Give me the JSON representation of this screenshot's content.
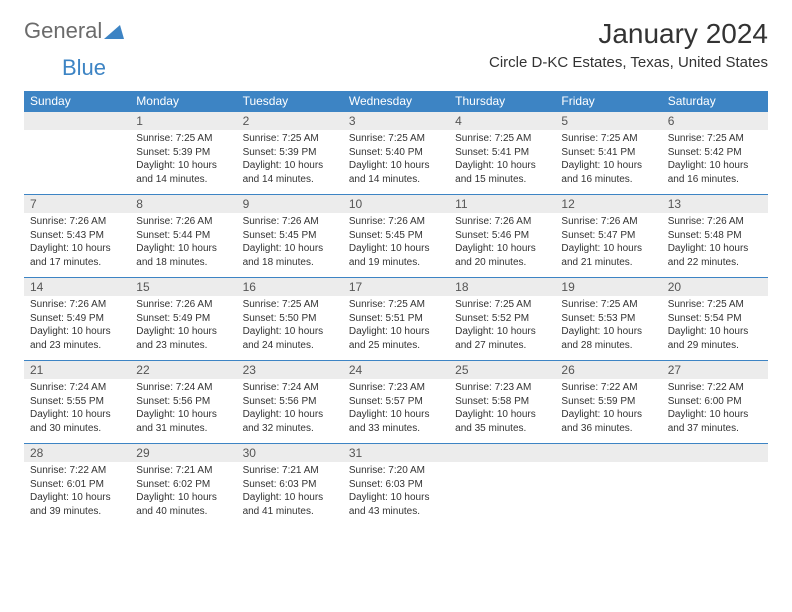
{
  "logo": {
    "general": "General",
    "blue": "Blue"
  },
  "title": "January 2024",
  "location": "Circle D-KC Estates, Texas, United States",
  "colors": {
    "header_bg": "#3d84c4",
    "header_text": "#ffffff",
    "daynum_bg": "#ececec",
    "border": "#3d84c4",
    "body_text": "#333333",
    "logo_gray": "#6b6b6b",
    "logo_blue": "#3d84c4"
  },
  "fonts": {
    "title_size": 28,
    "location_size": 15,
    "dow_size": 12,
    "daynum_size": 12,
    "body_size": 10
  },
  "days_of_week": [
    "Sunday",
    "Monday",
    "Tuesday",
    "Wednesday",
    "Thursday",
    "Friday",
    "Saturday"
  ],
  "weeks": [
    {
      "nums": [
        "",
        "1",
        "2",
        "3",
        "4",
        "5",
        "6"
      ],
      "cells": [
        {
          "sunrise": "",
          "sunset": "",
          "daylight1": "",
          "daylight2": ""
        },
        {
          "sunrise": "Sunrise: 7:25 AM",
          "sunset": "Sunset: 5:39 PM",
          "daylight1": "Daylight: 10 hours",
          "daylight2": "and 14 minutes."
        },
        {
          "sunrise": "Sunrise: 7:25 AM",
          "sunset": "Sunset: 5:39 PM",
          "daylight1": "Daylight: 10 hours",
          "daylight2": "and 14 minutes."
        },
        {
          "sunrise": "Sunrise: 7:25 AM",
          "sunset": "Sunset: 5:40 PM",
          "daylight1": "Daylight: 10 hours",
          "daylight2": "and 14 minutes."
        },
        {
          "sunrise": "Sunrise: 7:25 AM",
          "sunset": "Sunset: 5:41 PM",
          "daylight1": "Daylight: 10 hours",
          "daylight2": "and 15 minutes."
        },
        {
          "sunrise": "Sunrise: 7:25 AM",
          "sunset": "Sunset: 5:41 PM",
          "daylight1": "Daylight: 10 hours",
          "daylight2": "and 16 minutes."
        },
        {
          "sunrise": "Sunrise: 7:25 AM",
          "sunset": "Sunset: 5:42 PM",
          "daylight1": "Daylight: 10 hours",
          "daylight2": "and 16 minutes."
        }
      ]
    },
    {
      "nums": [
        "7",
        "8",
        "9",
        "10",
        "11",
        "12",
        "13"
      ],
      "cells": [
        {
          "sunrise": "Sunrise: 7:26 AM",
          "sunset": "Sunset: 5:43 PM",
          "daylight1": "Daylight: 10 hours",
          "daylight2": "and 17 minutes."
        },
        {
          "sunrise": "Sunrise: 7:26 AM",
          "sunset": "Sunset: 5:44 PM",
          "daylight1": "Daylight: 10 hours",
          "daylight2": "and 18 minutes."
        },
        {
          "sunrise": "Sunrise: 7:26 AM",
          "sunset": "Sunset: 5:45 PM",
          "daylight1": "Daylight: 10 hours",
          "daylight2": "and 18 minutes."
        },
        {
          "sunrise": "Sunrise: 7:26 AM",
          "sunset": "Sunset: 5:45 PM",
          "daylight1": "Daylight: 10 hours",
          "daylight2": "and 19 minutes."
        },
        {
          "sunrise": "Sunrise: 7:26 AM",
          "sunset": "Sunset: 5:46 PM",
          "daylight1": "Daylight: 10 hours",
          "daylight2": "and 20 minutes."
        },
        {
          "sunrise": "Sunrise: 7:26 AM",
          "sunset": "Sunset: 5:47 PM",
          "daylight1": "Daylight: 10 hours",
          "daylight2": "and 21 minutes."
        },
        {
          "sunrise": "Sunrise: 7:26 AM",
          "sunset": "Sunset: 5:48 PM",
          "daylight1": "Daylight: 10 hours",
          "daylight2": "and 22 minutes."
        }
      ]
    },
    {
      "nums": [
        "14",
        "15",
        "16",
        "17",
        "18",
        "19",
        "20"
      ],
      "cells": [
        {
          "sunrise": "Sunrise: 7:26 AM",
          "sunset": "Sunset: 5:49 PM",
          "daylight1": "Daylight: 10 hours",
          "daylight2": "and 23 minutes."
        },
        {
          "sunrise": "Sunrise: 7:26 AM",
          "sunset": "Sunset: 5:49 PM",
          "daylight1": "Daylight: 10 hours",
          "daylight2": "and 23 minutes."
        },
        {
          "sunrise": "Sunrise: 7:25 AM",
          "sunset": "Sunset: 5:50 PM",
          "daylight1": "Daylight: 10 hours",
          "daylight2": "and 24 minutes."
        },
        {
          "sunrise": "Sunrise: 7:25 AM",
          "sunset": "Sunset: 5:51 PM",
          "daylight1": "Daylight: 10 hours",
          "daylight2": "and 25 minutes."
        },
        {
          "sunrise": "Sunrise: 7:25 AM",
          "sunset": "Sunset: 5:52 PM",
          "daylight1": "Daylight: 10 hours",
          "daylight2": "and 27 minutes."
        },
        {
          "sunrise": "Sunrise: 7:25 AM",
          "sunset": "Sunset: 5:53 PM",
          "daylight1": "Daylight: 10 hours",
          "daylight2": "and 28 minutes."
        },
        {
          "sunrise": "Sunrise: 7:25 AM",
          "sunset": "Sunset: 5:54 PM",
          "daylight1": "Daylight: 10 hours",
          "daylight2": "and 29 minutes."
        }
      ]
    },
    {
      "nums": [
        "21",
        "22",
        "23",
        "24",
        "25",
        "26",
        "27"
      ],
      "cells": [
        {
          "sunrise": "Sunrise: 7:24 AM",
          "sunset": "Sunset: 5:55 PM",
          "daylight1": "Daylight: 10 hours",
          "daylight2": "and 30 minutes."
        },
        {
          "sunrise": "Sunrise: 7:24 AM",
          "sunset": "Sunset: 5:56 PM",
          "daylight1": "Daylight: 10 hours",
          "daylight2": "and 31 minutes."
        },
        {
          "sunrise": "Sunrise: 7:24 AM",
          "sunset": "Sunset: 5:56 PM",
          "daylight1": "Daylight: 10 hours",
          "daylight2": "and 32 minutes."
        },
        {
          "sunrise": "Sunrise: 7:23 AM",
          "sunset": "Sunset: 5:57 PM",
          "daylight1": "Daylight: 10 hours",
          "daylight2": "and 33 minutes."
        },
        {
          "sunrise": "Sunrise: 7:23 AM",
          "sunset": "Sunset: 5:58 PM",
          "daylight1": "Daylight: 10 hours",
          "daylight2": "and 35 minutes."
        },
        {
          "sunrise": "Sunrise: 7:22 AM",
          "sunset": "Sunset: 5:59 PM",
          "daylight1": "Daylight: 10 hours",
          "daylight2": "and 36 minutes."
        },
        {
          "sunrise": "Sunrise: 7:22 AM",
          "sunset": "Sunset: 6:00 PM",
          "daylight1": "Daylight: 10 hours",
          "daylight2": "and 37 minutes."
        }
      ]
    },
    {
      "nums": [
        "28",
        "29",
        "30",
        "31",
        "",
        "",
        ""
      ],
      "cells": [
        {
          "sunrise": "Sunrise: 7:22 AM",
          "sunset": "Sunset: 6:01 PM",
          "daylight1": "Daylight: 10 hours",
          "daylight2": "and 39 minutes."
        },
        {
          "sunrise": "Sunrise: 7:21 AM",
          "sunset": "Sunset: 6:02 PM",
          "daylight1": "Daylight: 10 hours",
          "daylight2": "and 40 minutes."
        },
        {
          "sunrise": "Sunrise: 7:21 AM",
          "sunset": "Sunset: 6:03 PM",
          "daylight1": "Daylight: 10 hours",
          "daylight2": "and 41 minutes."
        },
        {
          "sunrise": "Sunrise: 7:20 AM",
          "sunset": "Sunset: 6:03 PM",
          "daylight1": "Daylight: 10 hours",
          "daylight2": "and 43 minutes."
        },
        {
          "sunrise": "",
          "sunset": "",
          "daylight1": "",
          "daylight2": ""
        },
        {
          "sunrise": "",
          "sunset": "",
          "daylight1": "",
          "daylight2": ""
        },
        {
          "sunrise": "",
          "sunset": "",
          "daylight1": "",
          "daylight2": ""
        }
      ]
    }
  ]
}
